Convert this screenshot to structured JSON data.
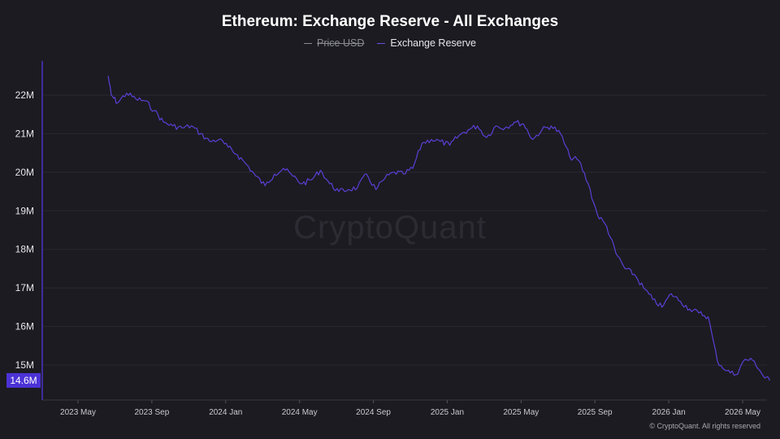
{
  "chart_data": {
    "type": "line",
    "title": "Ethereum: Exchange Reserve - All Exchanges",
    "legend": [
      {
        "name": "Price USD",
        "color": "#8a8a93",
        "hidden": true
      },
      {
        "name": "Exchange Reserve",
        "color": "#6a4de0",
        "hidden": false
      }
    ],
    "legend_position": "top-center",
    "yaxis": {
      "ticks": [
        "15M",
        "16M",
        "17M",
        "18M",
        "19M",
        "20M",
        "21M",
        "22M"
      ],
      "min": 14.3,
      "max": 23.0,
      "unit": "M"
    },
    "xaxis": {
      "ticks": [
        "2023 May",
        "2023 Sep",
        "2024 Jan",
        "2024 May",
        "2024 Sep",
        "2025 Jan",
        "2025 May",
        "2025 Sep",
        "2026 Jan",
        "2026 May"
      ],
      "start": "2023-03",
      "end": "2026-07"
    },
    "grid": true,
    "current_value_label": "14.6M",
    "series": [
      {
        "name": "Exchange Reserve",
        "color": "#5b3fd6",
        "x": [
          "2023-06-20",
          "2023-06-25",
          "2023-07-05",
          "2023-07-20",
          "2023-08-05",
          "2023-08-20",
          "2023-09-05",
          "2023-09-20",
          "2023-10-05",
          "2023-10-20",
          "2023-11-05",
          "2023-11-20",
          "2023-12-05",
          "2023-12-20",
          "2024-01-05",
          "2024-01-20",
          "2024-02-05",
          "2024-02-20",
          "2024-03-05",
          "2024-03-20",
          "2024-04-05",
          "2024-04-20",
          "2024-05-05",
          "2024-05-20",
          "2024-06-05",
          "2024-06-20",
          "2024-07-05",
          "2024-07-20",
          "2024-08-05",
          "2024-08-20",
          "2024-09-05",
          "2024-09-20",
          "2024-10-05",
          "2024-10-20",
          "2024-11-05",
          "2024-11-20",
          "2024-12-05",
          "2024-12-20",
          "2025-01-05",
          "2025-01-20",
          "2025-02-05",
          "2025-02-20",
          "2025-03-05",
          "2025-03-20",
          "2025-04-05",
          "2025-04-20",
          "2025-05-05",
          "2025-05-20",
          "2025-06-05",
          "2025-06-20",
          "2025-07-05",
          "2025-07-20",
          "2025-08-05",
          "2025-08-20",
          "2025-09-05",
          "2025-09-20",
          "2025-10-05",
          "2025-10-20",
          "2025-11-05",
          "2025-11-20",
          "2025-12-05",
          "2025-12-20",
          "2026-01-05",
          "2026-01-20",
          "2026-02-05",
          "2026-02-20",
          "2026-03-05",
          "2026-03-20",
          "2026-04-05",
          "2026-04-20",
          "2026-05-05",
          "2026-05-20",
          "2026-06-05",
          "2026-06-15"
        ],
        "values": [
          22.5,
          22.0,
          21.8,
          22.05,
          21.9,
          21.85,
          21.6,
          21.3,
          21.2,
          21.15,
          21.2,
          21.0,
          20.8,
          20.85,
          20.65,
          20.45,
          20.2,
          19.9,
          19.65,
          19.95,
          20.1,
          19.9,
          19.7,
          19.8,
          20.05,
          19.7,
          19.5,
          19.55,
          19.6,
          19.95,
          19.55,
          19.85,
          20.0,
          19.95,
          20.1,
          20.75,
          20.85,
          20.8,
          20.7,
          20.95,
          21.1,
          21.2,
          20.9,
          21.2,
          21.15,
          21.3,
          21.25,
          20.85,
          21.1,
          21.2,
          21.0,
          20.4,
          20.3,
          19.7,
          18.9,
          18.6,
          17.9,
          17.5,
          17.35,
          17.0,
          16.7,
          16.5,
          16.85,
          16.65,
          16.45,
          16.35,
          16.25,
          15.1,
          14.85,
          14.75,
          15.15,
          15.1,
          14.7,
          14.6
        ]
      }
    ]
  },
  "watermark": "CryptoQuant",
  "credit": "© CryptoQuant. All rights reserved"
}
